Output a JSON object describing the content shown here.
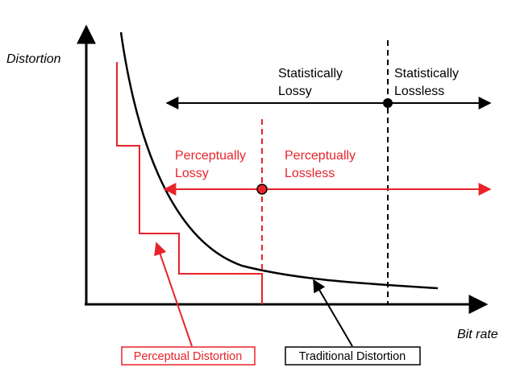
{
  "axes": {
    "y_label": "Distortion",
    "x_label": "Bit rate"
  },
  "regions": {
    "statistically_lossy": [
      "Statistically",
      "Lossy"
    ],
    "statistically_lossless": [
      "Statistically",
      "Lossless"
    ],
    "perceptually_lossy": [
      "Perceptually",
      "Lossy"
    ],
    "perceptually_lossless": [
      "Perceptually",
      "Lossless"
    ]
  },
  "legend": {
    "perceptual": "Perceptual Distortion",
    "traditional": "Traditional Distortion"
  },
  "colors": {
    "traditional": "#000000",
    "perceptual": "#e8232a"
  }
}
